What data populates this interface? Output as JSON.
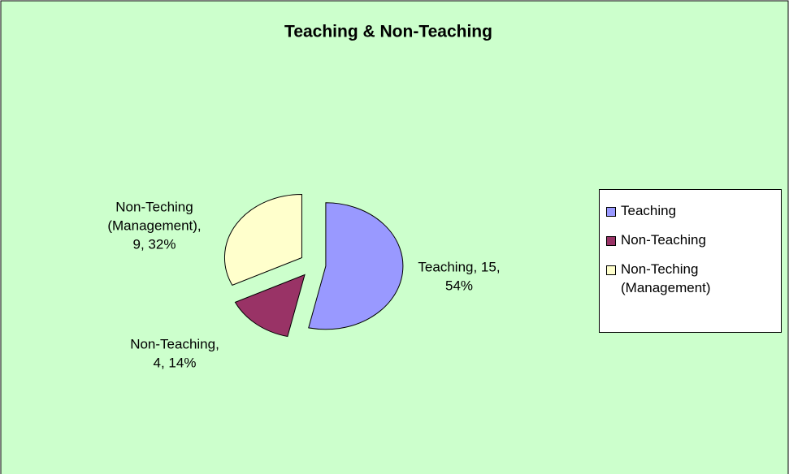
{
  "chart_data": {
    "type": "pie",
    "title": "Teaching & Non-Teaching",
    "categories": [
      "Teaching",
      "Non-Teaching",
      "Non-Teching (Management)"
    ],
    "values": [
      15,
      4,
      9
    ],
    "value_labels": [
      [
        "Teaching, 15,",
        "54%"
      ],
      [
        "Non-Teaching,",
        "4, 14%"
      ],
      [
        "Non-Teching",
        "(Management),",
        "9, 32%"
      ]
    ],
    "colors": [
      "#9999ff",
      "#993366",
      "#ffffcc"
    ],
    "legend": "right"
  }
}
